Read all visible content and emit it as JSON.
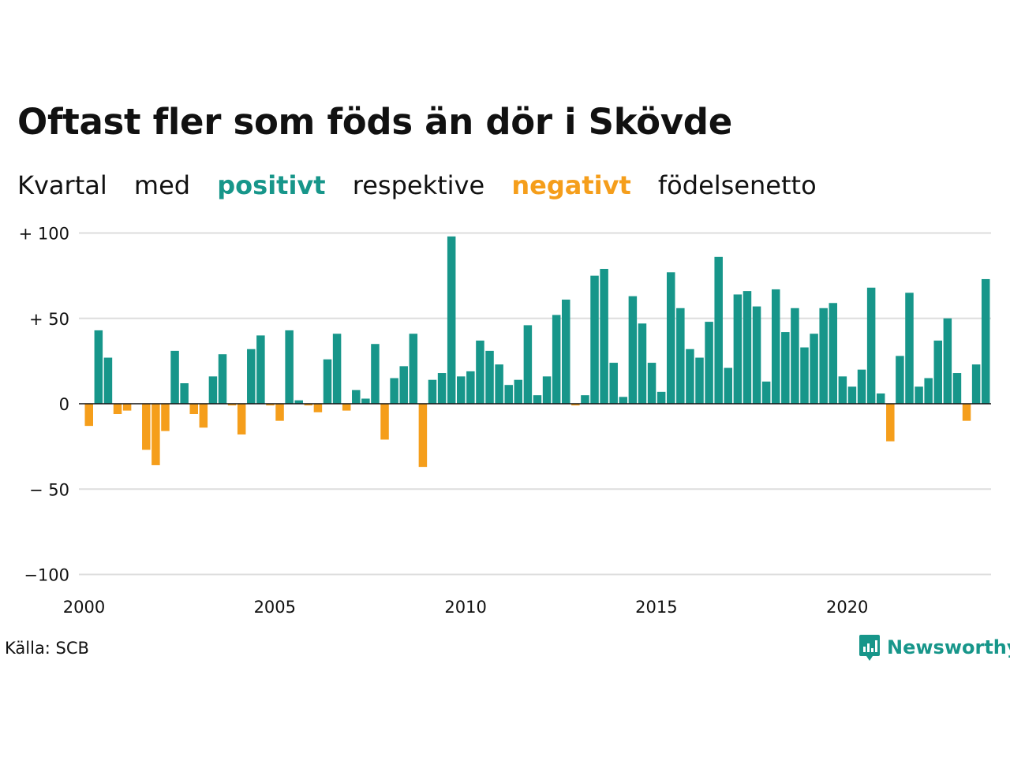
{
  "title": "Oftast fler som föds än dör i Skövde",
  "subtitle": {
    "w1": "Kvartal",
    "w2": "med",
    "positive": "positivt",
    "w3": "respektive",
    "negative": "negativt",
    "w4": "födelsenetto"
  },
  "colors": {
    "positive": "#17968a",
    "negative": "#f59e1b",
    "grid": "#dddddd",
    "text": "#111111"
  },
  "source": "Källa: SCB",
  "brand": {
    "name": "Newsworthy",
    "icon": "newsworthy-logo-icon"
  },
  "chart_data": {
    "type": "bar",
    "y_ticks": [
      {
        "value": 100,
        "label": "+ 100"
      },
      {
        "value": 50,
        "label": "+  50"
      },
      {
        "value": 0,
        "label": "0"
      },
      {
        "value": -50,
        "label": "− 50"
      },
      {
        "value": -100,
        "label": "−100"
      }
    ],
    "x_ticks": [
      "2000",
      "2005",
      "2010",
      "2015",
      "2020"
    ],
    "ylim": [
      -100,
      100
    ],
    "start_period": "2000 Q1",
    "values": [
      -13,
      43,
      27,
      -6,
      -4,
      0,
      -27,
      -36,
      -16,
      31,
      12,
      -6,
      -14,
      16,
      29,
      -1,
      -18,
      32,
      40,
      -1,
      -10,
      43,
      2,
      -1,
      -5,
      26,
      41,
      -4,
      8,
      3,
      35,
      -21,
      15,
      22,
      41,
      -37,
      14,
      18,
      98,
      16,
      19,
      37,
      31,
      23,
      11,
      14,
      46,
      5,
      16,
      52,
      61,
      -1,
      5,
      75,
      79,
      24,
      4,
      63,
      47,
      24,
      7,
      77,
      56,
      32,
      27,
      48,
      86,
      21,
      64,
      66,
      57,
      13,
      67,
      42,
      56,
      33,
      41,
      56,
      59,
      16,
      10,
      20,
      68,
      6,
      -22,
      28,
      65,
      10,
      15,
      37,
      50,
      18,
      -10,
      23,
      73
    ]
  }
}
